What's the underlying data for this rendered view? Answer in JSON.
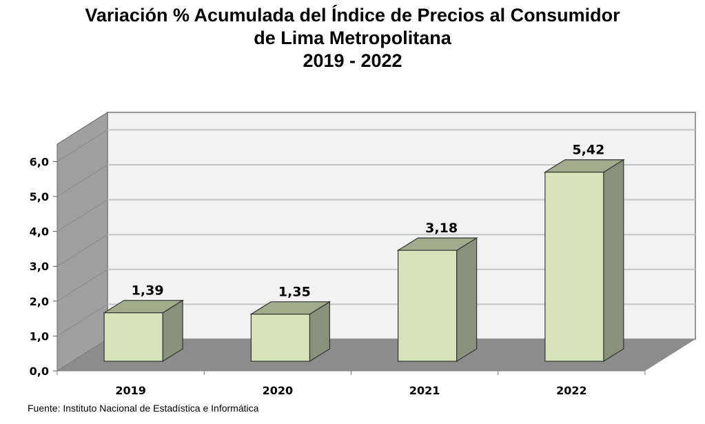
{
  "chart_data": {
    "type": "bar",
    "title_lines": [
      "Variación % Acumulada del Índice de Precios al Consumidor",
      "de Lima Metropolitana",
      "2019 - 2022"
    ],
    "categories": [
      "2019",
      "2020",
      "2021",
      "2022"
    ],
    "values": [
      1.39,
      1.35,
      3.18,
      5.42
    ],
    "data_labels": [
      "1,39",
      "1,35",
      "3,18",
      "5,42"
    ],
    "y_ticks": [
      "0,0",
      "1,0",
      "2,0",
      "3,0",
      "4,0",
      "5,0",
      "6,0"
    ],
    "ylim": [
      0,
      6
    ],
    "xlabel": "",
    "ylabel": "",
    "grid": true,
    "style": "3d-column",
    "colors": {
      "bar_front": "#d6e3bb",
      "bar_top": "#a1ac8d",
      "bar_side": "#8a917a",
      "wall": "#f2f2f2",
      "side_wall": "#a0a0a0",
      "floor": "#8c8c8c",
      "grid": "#c4c4c4"
    }
  },
  "source": "Fuente: Instituto Nacional de Estadística e Informática"
}
